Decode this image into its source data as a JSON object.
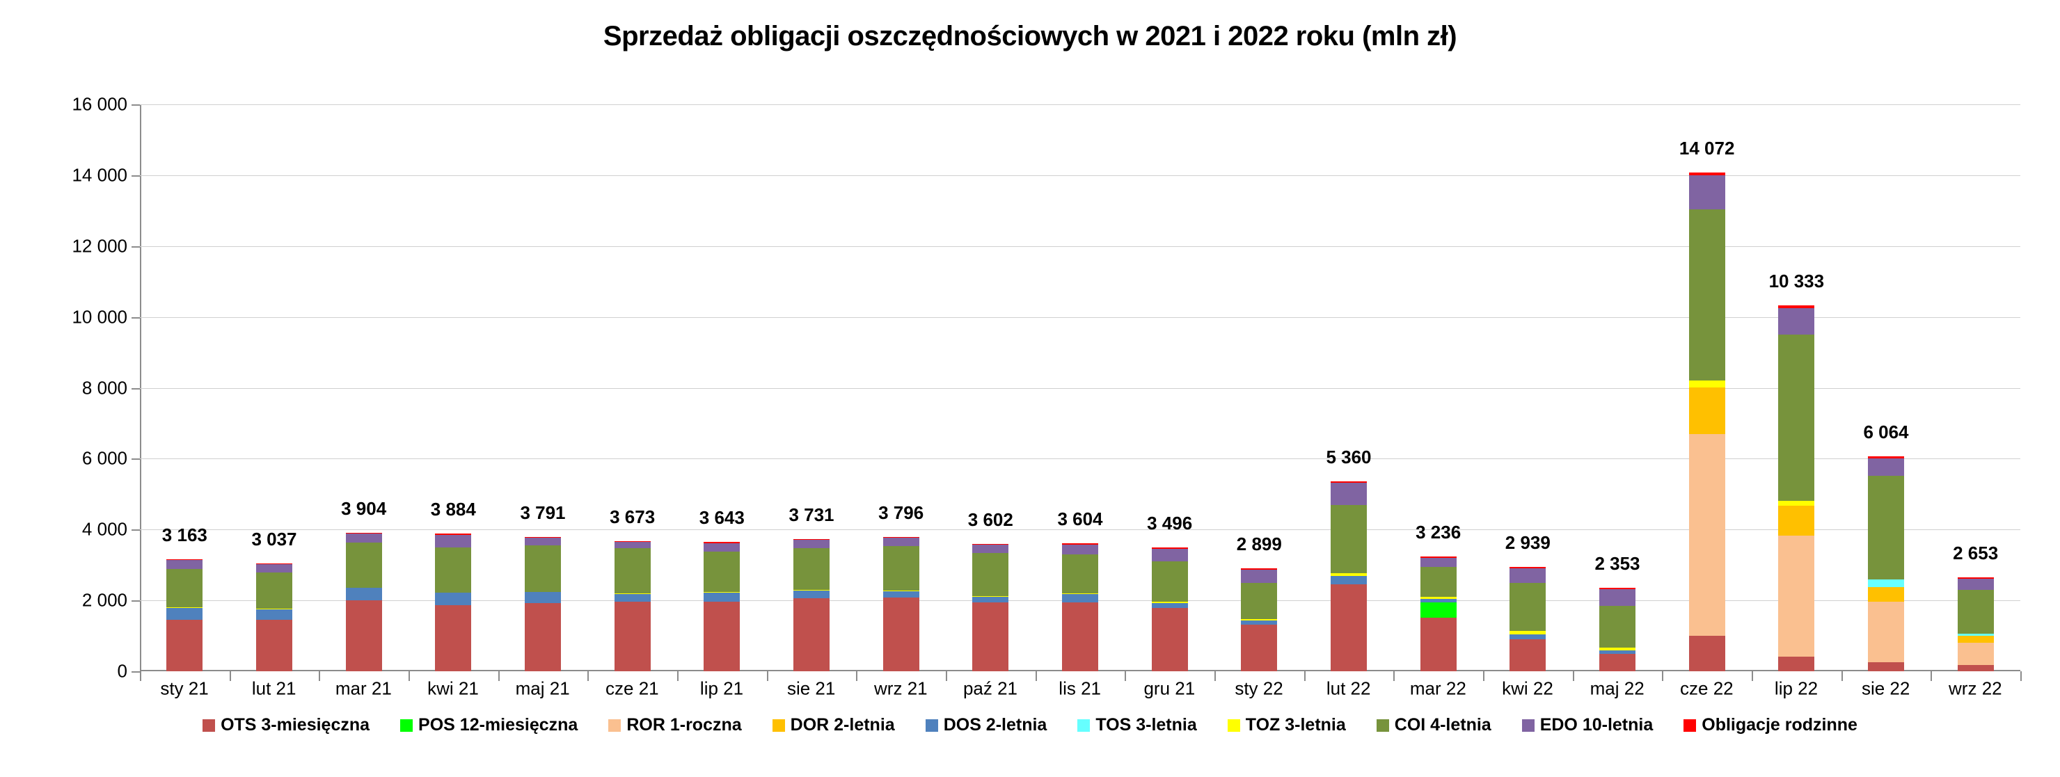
{
  "chart_data": {
    "type": "bar",
    "stacked": true,
    "title": "Sprzedaż obligacji oszczędnościowych w 2021 i 2022 roku (mln zł)",
    "xlabel": "",
    "ylabel": "",
    "ylim": [
      0,
      16000
    ],
    "yticks": [
      0,
      2000,
      4000,
      6000,
      8000,
      10000,
      12000,
      14000,
      16000
    ],
    "ytick_labels": [
      "0",
      "2 000",
      "4 000",
      "6 000",
      "8 000",
      "10 000",
      "12 000",
      "14 000",
      "16 000"
    ],
    "grid": true,
    "legend_position": "bottom",
    "categories": [
      "sty 21",
      "lut 21",
      "mar 21",
      "kwi 21",
      "maj 21",
      "cze 21",
      "lip 21",
      "sie 21",
      "wrz 21",
      "paź 21",
      "lis 21",
      "gru 21",
      "sty 22",
      "lut 22",
      "mar 22",
      "kwi 22",
      "maj 22",
      "cze 22",
      "lip 22",
      "sie 22",
      "wrz 22"
    ],
    "totals": [
      3163,
      3037,
      3904,
      3884,
      3791,
      3673,
      3643,
      3731,
      3796,
      3602,
      3604,
      3496,
      2899,
      5360,
      3236,
      2939,
      2353,
      14072,
      10333,
      6064,
      2653
    ],
    "total_labels": [
      "3 163",
      "3 037",
      "3 904",
      "3 884",
      "3 791",
      "3 673",
      "3 643",
      "3 731",
      "3 796",
      "3 602",
      "3 604",
      "3 496",
      "2 899",
      "5 360",
      "3 236",
      "2 939",
      "2 353",
      "14 072",
      "10 333",
      "6 064",
      "2 653"
    ],
    "series": [
      {
        "name": "OTS 3-miesięczna",
        "color": "#C0504D",
        "values": [
          1456,
          1456,
          2007,
          1869,
          1928,
          1967,
          1967,
          2066,
          2085,
          1948,
          1948,
          1790,
          1316,
          2456,
          1519,
          904,
          490,
          1000,
          410,
          261,
          183
        ]
      },
      {
        "name": "POS 12-miesięczna",
        "color": "#00FF00",
        "values": [
          0,
          0,
          0,
          0,
          0,
          0,
          0,
          0,
          0,
          0,
          0,
          0,
          0,
          0,
          433,
          0,
          0,
          0,
          0,
          0,
          0
        ]
      },
      {
        "name": "ROR 1-roczna",
        "color": "#FAC090",
        "values": [
          0,
          0,
          0,
          0,
          0,
          0,
          0,
          0,
          0,
          0,
          0,
          0,
          0,
          0,
          0,
          0,
          0,
          5690,
          3420,
          1706,
          627
        ]
      },
      {
        "name": "DOR 2-letnia",
        "color": "#FFC000",
        "values": [
          0,
          0,
          0,
          0,
          0,
          0,
          0,
          0,
          0,
          0,
          0,
          0,
          0,
          0,
          0,
          0,
          0,
          1330,
          840,
          412,
          197
        ]
      },
      {
        "name": "DOS 2-letnia",
        "color": "#4F81BD",
        "values": [
          334,
          301,
          341,
          354,
          315,
          221,
          251,
          211,
          175,
          155,
          227,
          144,
          118,
          236,
          91,
          137,
          98,
          0,
          0,
          0,
          0
        ]
      },
      {
        "name": "TOS 3-letnia",
        "color": "#66FFFF",
        "values": [
          0,
          0,
          0,
          0,
          0,
          0,
          0,
          0,
          0,
          0,
          0,
          0,
          0,
          0,
          0,
          0,
          0,
          0,
          0,
          216,
          58
        ]
      },
      {
        "name": "TOZ 3-letnia",
        "color": "#FFFF00",
        "values": [
          15,
          15,
          15,
          0,
          0,
          15,
          12,
          12,
          15,
          15,
          15,
          30,
          40,
          78,
          59,
          105,
          85,
          180,
          140,
          0,
          0
        ]
      },
      {
        "name": "COI 4-letnia",
        "color": "#77933C",
        "values": [
          1082,
          1021,
          1276,
          1279,
          1318,
          1279,
          1154,
          1193,
          1266,
          1226,
          1115,
          1144,
          1021,
          1925,
          845,
          1349,
          1170,
          4840,
          4700,
          2921,
          1236
        ]
      },
      {
        "name": "EDO 10-letnia",
        "color": "#8064A2",
        "values": [
          261,
          223,
          243,
          354,
          216,
          177,
          236,
          236,
          236,
          236,
          275,
          354,
          380,
          629,
          262,
          413,
          471,
          960,
          740,
          497,
          320
        ]
      },
      {
        "name": "Obligacje rodzinne",
        "color": "#FF0000",
        "values": [
          15,
          21,
          22,
          28,
          14,
          14,
          23,
          13,
          19,
          22,
          24,
          34,
          24,
          36,
          27,
          31,
          39,
          72,
          83,
          51,
          32
        ]
      }
    ]
  }
}
